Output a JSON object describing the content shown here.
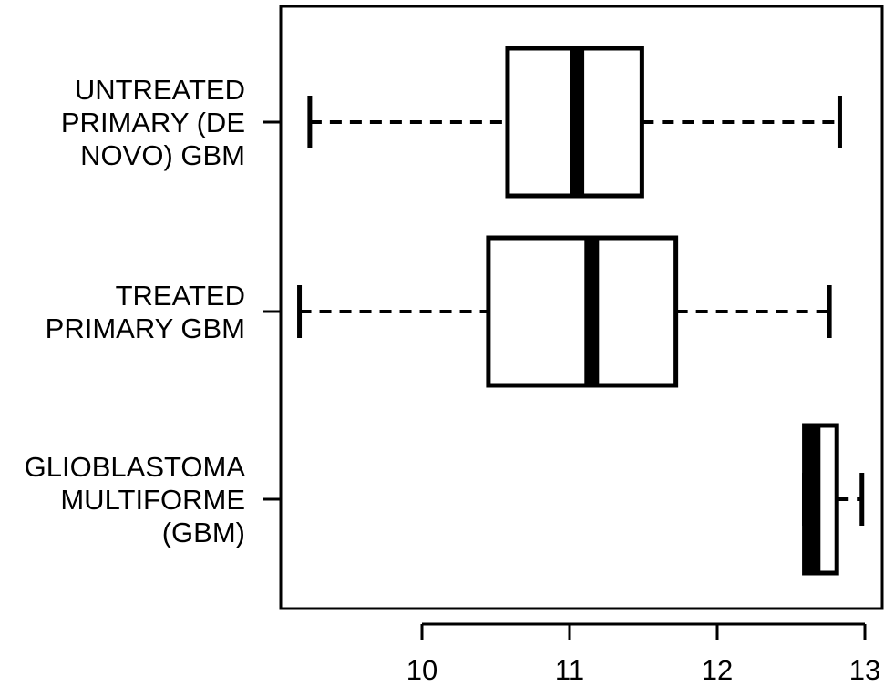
{
  "chart_data": {
    "type": "boxplot",
    "orientation": "horizontal",
    "title": "",
    "xlabel": "",
    "ylabel": "",
    "xlim": [
      9.05,
      13.0
    ],
    "x_ticks": [
      10,
      11,
      12,
      13
    ],
    "grid": false,
    "categories": [
      {
        "lines": [
          "UNTREATED",
          "PRIMARY (DE",
          "NOVO) GBM"
        ],
        "whisker_low": 9.24,
        "q1": 10.58,
        "median": 11.05,
        "q3": 11.49,
        "whisker_high": 12.83
      },
      {
        "lines": [
          "TREATED",
          "PRIMARY GBM"
        ],
        "whisker_low": 9.17,
        "q1": 10.45,
        "median": 11.15,
        "q3": 11.72,
        "whisker_high": 12.76
      },
      {
        "lines": [
          "GLIOBLASTOMA",
          "MULTIFORME",
          "(GBM)"
        ],
        "whisker_low": 12.59,
        "q1": 12.59,
        "median": 12.65,
        "q3": 12.81,
        "whisker_high": 12.98
      }
    ]
  }
}
